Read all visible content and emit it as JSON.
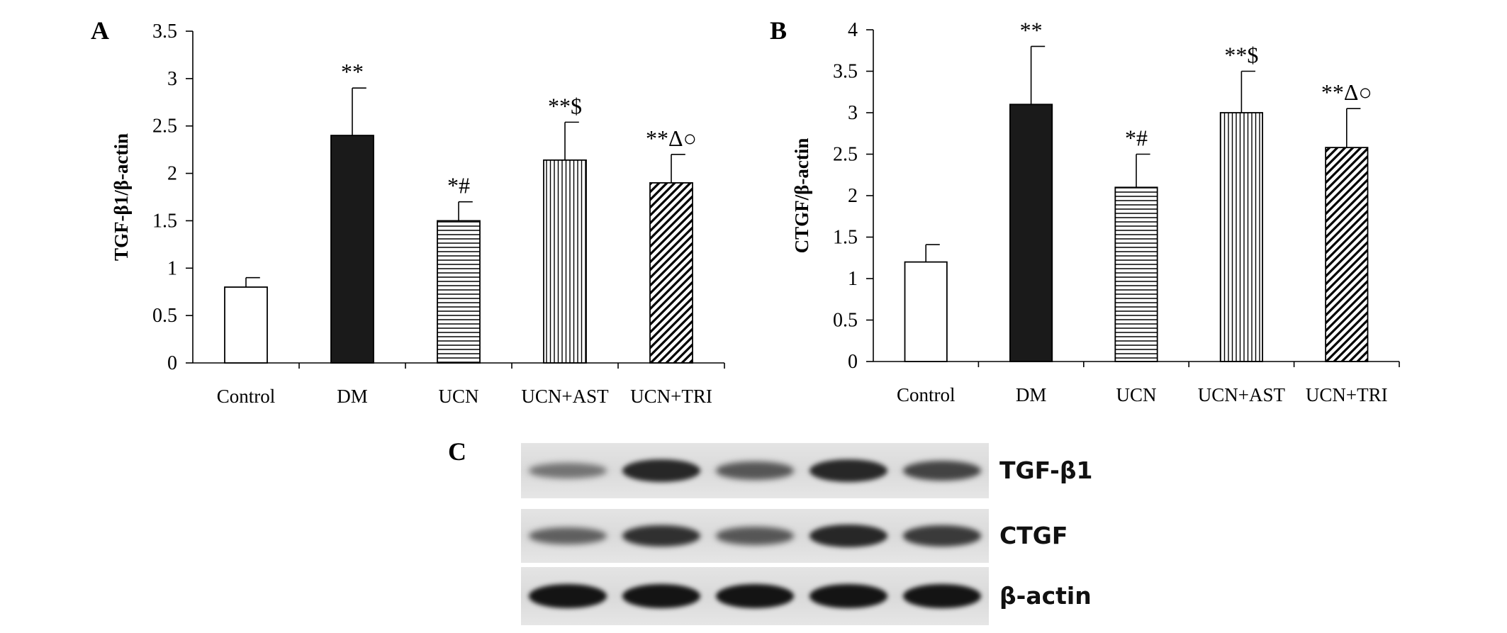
{
  "panels": {
    "A": "A",
    "B": "B",
    "C": "C"
  },
  "chart_data": [
    {
      "type": "bar",
      "panel": "A",
      "ylabel": "TGF-β1/β-actin",
      "xlabel": "",
      "ylim": [
        0,
        3.5
      ],
      "ytick_step": 0.5,
      "yticks": [
        "0",
        "0.5",
        "1",
        "1.5",
        "2",
        "2.5",
        "3",
        "3.5"
      ],
      "categories": [
        "Control",
        "DM",
        "UCN",
        "UCN+AST",
        "UCN+TRI"
      ],
      "values": [
        0.8,
        2.4,
        1.5,
        2.14,
        1.9
      ],
      "errors": [
        0.1,
        0.5,
        0.2,
        0.4,
        0.3
      ],
      "annotations": [
        "",
        "**",
        "*#",
        "**$",
        "**Δ○"
      ],
      "fills": [
        "white",
        "black",
        "hlines",
        "vlines",
        "diagonal"
      ],
      "grid": false
    },
    {
      "type": "bar",
      "panel": "B",
      "ylabel": "CTGF/β-actin",
      "xlabel": "",
      "ylim": [
        0,
        4
      ],
      "ytick_step": 0.5,
      "yticks": [
        "0",
        "0.5",
        "1",
        "1.5",
        "2",
        "2.5",
        "3",
        "3.5",
        "4"
      ],
      "categories": [
        "Control",
        "DM",
        "UCN",
        "UCN+AST",
        "UCN+TRI"
      ],
      "values": [
        1.2,
        3.1,
        2.1,
        3.0,
        2.58
      ],
      "errors": [
        0.21,
        0.7,
        0.4,
        0.5,
        0.47
      ],
      "annotations": [
        "",
        "**",
        "*#",
        "**$",
        "**Δ○"
      ],
      "fills": [
        "white",
        "black",
        "hlines",
        "vlines",
        "diagonal"
      ],
      "grid": false
    }
  ],
  "blot": {
    "lanes": 5,
    "rows": [
      {
        "label": "TGF-β1",
        "intensities": [
          0.45,
          0.85,
          0.6,
          0.85,
          0.7
        ]
      },
      {
        "label": "CTGF",
        "intensities": [
          0.55,
          0.8,
          0.6,
          0.85,
          0.75
        ]
      },
      {
        "label": "β-actin",
        "intensities": [
          0.95,
          0.95,
          0.95,
          0.95,
          0.95
        ]
      }
    ]
  }
}
